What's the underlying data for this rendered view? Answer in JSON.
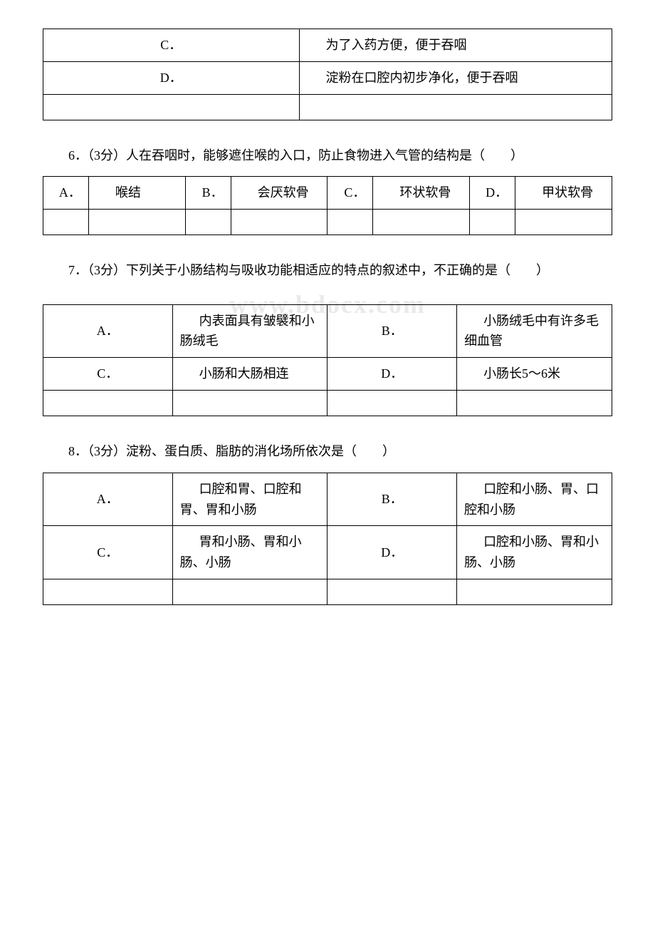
{
  "q5": {
    "optC": {
      "label": "C．",
      "text": "为了入药方便，便于吞咽"
    },
    "optD": {
      "label": "D．",
      "text": "淀粉在口腔内初步净化，便于吞咽"
    }
  },
  "q6": {
    "prompt": "6．（3分）人在吞咽时，能够遮住喉的入口，防止食物进入气管的结构是（　　）",
    "optA": {
      "label": "A．",
      "text": "喉结"
    },
    "optB": {
      "label": "B．",
      "text": "会厌软骨"
    },
    "optC": {
      "label": "C．",
      "text": "环状软骨"
    },
    "optD": {
      "label": "D．",
      "text": "甲状软骨"
    }
  },
  "q7": {
    "prompt": "7．（3分）下列关于小肠结构与吸收功能相适应的特点的叙述中，不正确的是（　　）",
    "optA": {
      "label": "A．",
      "text": "内表面具有皱襞和小肠绒毛"
    },
    "optB": {
      "label": "B．",
      "text": "小肠绒毛中有许多毛细血管"
    },
    "optC": {
      "label": "C．",
      "text": "小肠和大肠相连"
    },
    "optD": {
      "label": "D．",
      "text": "小肠长5～6米"
    }
  },
  "q8": {
    "prompt": "8．（3分）淀粉、蛋白质、脂肪的消化场所依次是（　　）",
    "optA": {
      "label": "A．",
      "text": "口腔和胃、口腔和胃、胃和小肠"
    },
    "optB": {
      "label": "B．",
      "text": "口腔和小肠、胃、口腔和小肠"
    },
    "optC": {
      "label": "C．",
      "text": "胃和小肠、胃和小肠、小肠"
    },
    "optD": {
      "label": "D．",
      "text": "口腔和小肠、胃和小肠、小肠"
    }
  },
  "watermark": "www.bdocx.com"
}
